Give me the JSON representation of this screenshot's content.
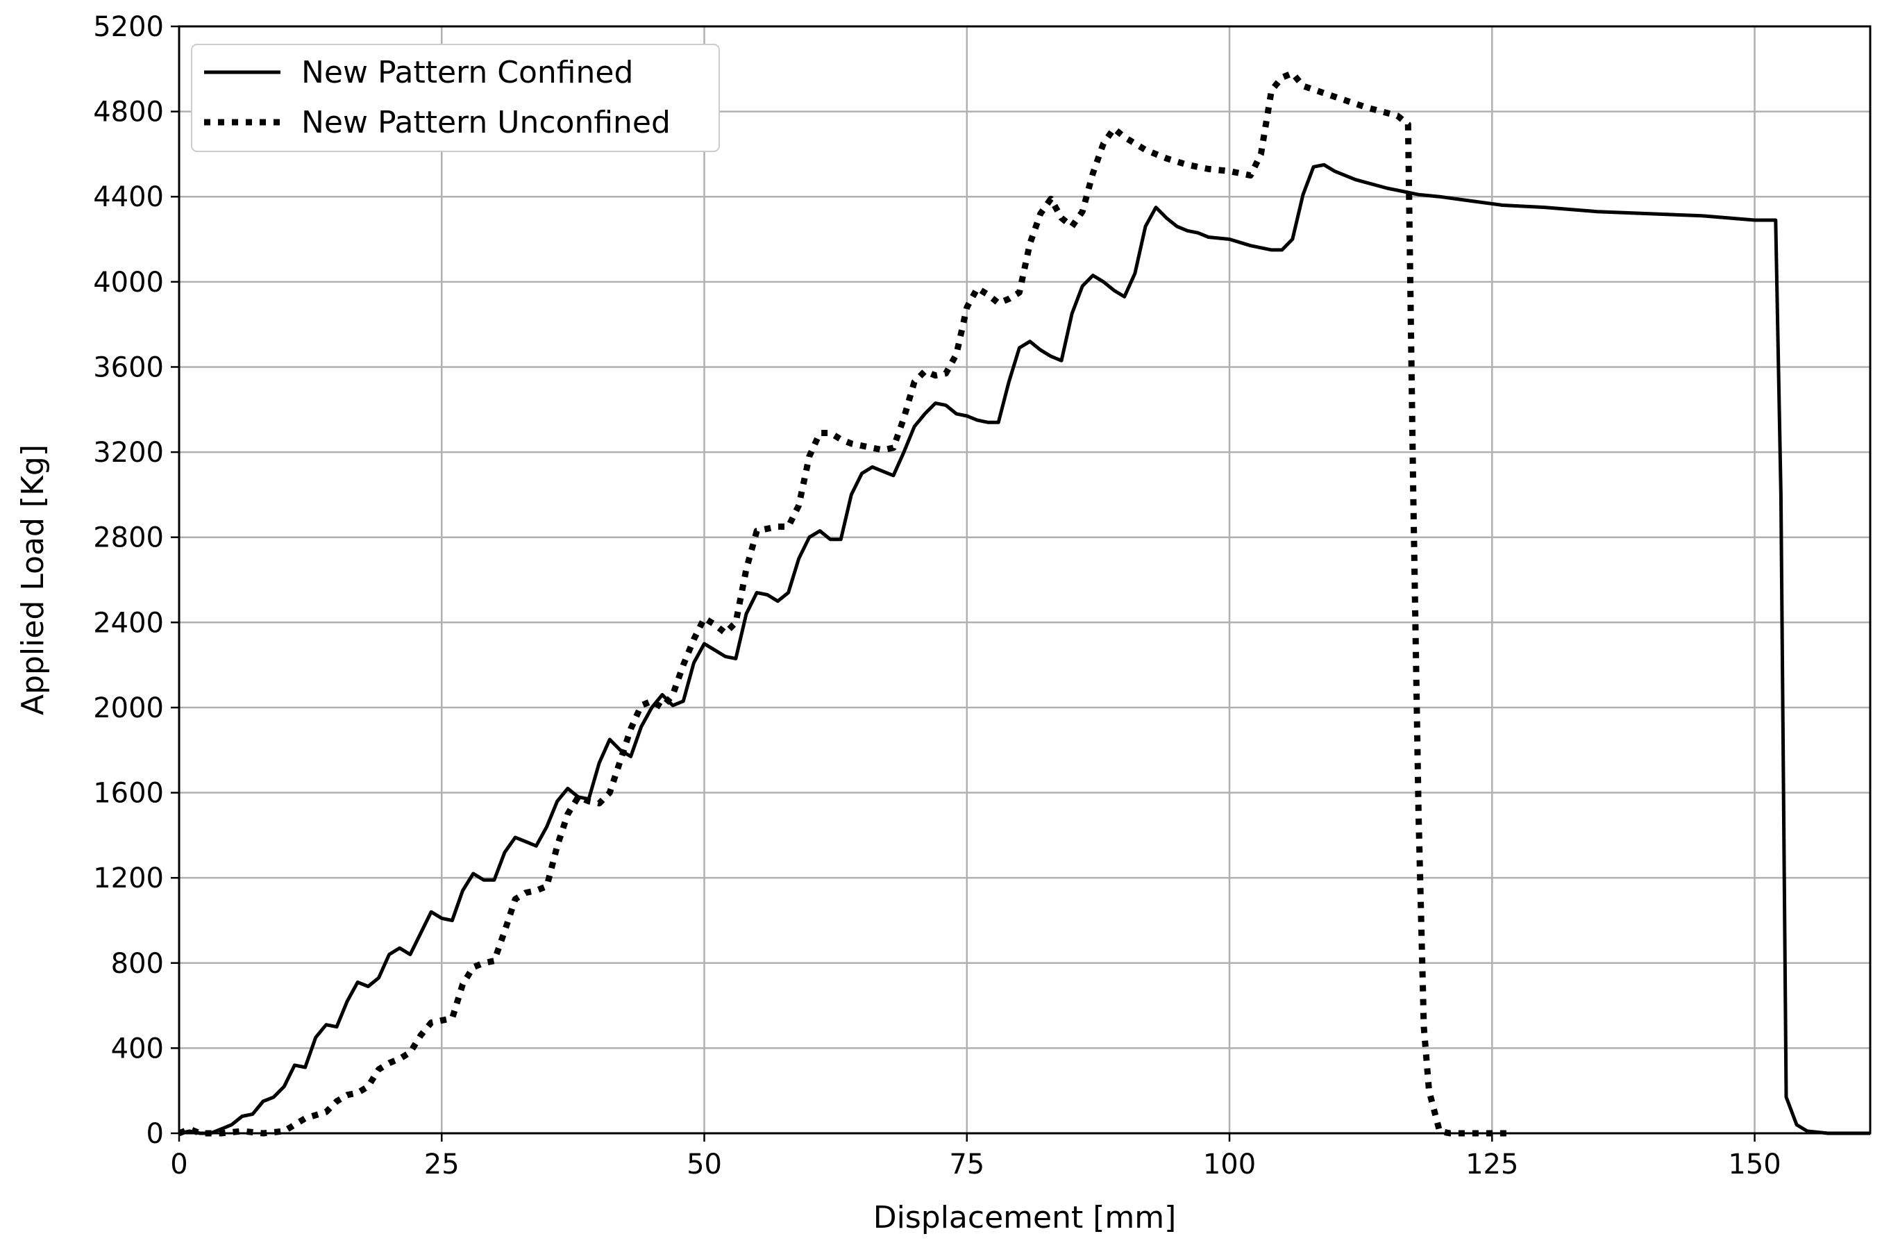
{
  "chart_data": {
    "type": "line",
    "xlabel": "Displacement [mm]",
    "ylabel": "Applied Load [Kg]",
    "xlim": [
      0,
      161
    ],
    "ylim": [
      0,
      5200
    ],
    "xticks": [
      0,
      25,
      50,
      75,
      100,
      125,
      150
    ],
    "yticks": [
      0,
      400,
      800,
      1200,
      1600,
      2000,
      2400,
      2800,
      3200,
      3600,
      4000,
      4400,
      4800,
      5200
    ],
    "grid": true,
    "legend_position": "top-left",
    "series": [
      {
        "name": "New Pattern Confined",
        "style": "solid",
        "color": "#000000",
        "points": [
          [
            0,
            0
          ],
          [
            1,
            10
          ],
          [
            2,
            0
          ],
          [
            3,
            0
          ],
          [
            4,
            20
          ],
          [
            5,
            40
          ],
          [
            6,
            80
          ],
          [
            7,
            90
          ],
          [
            8,
            150
          ],
          [
            9,
            170
          ],
          [
            10,
            220
          ],
          [
            11,
            320
          ],
          [
            12,
            310
          ],
          [
            13,
            450
          ],
          [
            14,
            510
          ],
          [
            15,
            500
          ],
          [
            16,
            620
          ],
          [
            17,
            710
          ],
          [
            18,
            690
          ],
          [
            19,
            730
          ],
          [
            20,
            840
          ],
          [
            21,
            870
          ],
          [
            22,
            840
          ],
          [
            23,
            940
          ],
          [
            24,
            1040
          ],
          [
            25,
            1010
          ],
          [
            26,
            1000
          ],
          [
            27,
            1140
          ],
          [
            28,
            1220
          ],
          [
            29,
            1190
          ],
          [
            30,
            1190
          ],
          [
            31,
            1320
          ],
          [
            32,
            1390
          ],
          [
            33,
            1370
          ],
          [
            34,
            1350
          ],
          [
            35,
            1440
          ],
          [
            36,
            1560
          ],
          [
            37,
            1620
          ],
          [
            38,
            1580
          ],
          [
            39,
            1570
          ],
          [
            40,
            1740
          ],
          [
            41,
            1850
          ],
          [
            42,
            1800
          ],
          [
            43,
            1770
          ],
          [
            44,
            1910
          ],
          [
            45,
            2000
          ],
          [
            46,
            2060
          ],
          [
            47,
            2010
          ],
          [
            48,
            2030
          ],
          [
            49,
            2210
          ],
          [
            50,
            2300
          ],
          [
            51,
            2270
          ],
          [
            52,
            2240
          ],
          [
            53,
            2230
          ],
          [
            54,
            2440
          ],
          [
            55,
            2540
          ],
          [
            56,
            2530
          ],
          [
            57,
            2500
          ],
          [
            58,
            2540
          ],
          [
            59,
            2700
          ],
          [
            60,
            2800
          ],
          [
            61,
            2830
          ],
          [
            62,
            2790
          ],
          [
            63,
            2790
          ],
          [
            64,
            3000
          ],
          [
            65,
            3100
          ],
          [
            66,
            3130
          ],
          [
            67,
            3110
          ],
          [
            68,
            3090
          ],
          [
            69,
            3200
          ],
          [
            70,
            3320
          ],
          [
            71,
            3380
          ],
          [
            72,
            3430
          ],
          [
            73,
            3420
          ],
          [
            74,
            3380
          ],
          [
            75,
            3370
          ],
          [
            76,
            3350
          ],
          [
            77,
            3340
          ],
          [
            78,
            3340
          ],
          [
            79,
            3530
          ],
          [
            80,
            3690
          ],
          [
            81,
            3720
          ],
          [
            82,
            3680
          ],
          [
            83,
            3650
          ],
          [
            84,
            3630
          ],
          [
            85,
            3850
          ],
          [
            86,
            3980
          ],
          [
            87,
            4030
          ],
          [
            88,
            4000
          ],
          [
            89,
            3960
          ],
          [
            90,
            3930
          ],
          [
            91,
            4040
          ],
          [
            92,
            4260
          ],
          [
            93,
            4350
          ],
          [
            94,
            4300
          ],
          [
            95,
            4260
          ],
          [
            96,
            4240
          ],
          [
            97,
            4230
          ],
          [
            98,
            4210
          ],
          [
            100,
            4200
          ],
          [
            102,
            4170
          ],
          [
            104,
            4150
          ],
          [
            105,
            4150
          ],
          [
            106,
            4200
          ],
          [
            107,
            4410
          ],
          [
            108,
            4540
          ],
          [
            109,
            4550
          ],
          [
            110,
            4520
          ],
          [
            112,
            4480
          ],
          [
            115,
            4440
          ],
          [
            118,
            4410
          ],
          [
            120,
            4400
          ],
          [
            123,
            4380
          ],
          [
            126,
            4360
          ],
          [
            130,
            4350
          ],
          [
            135,
            4330
          ],
          [
            140,
            4320
          ],
          [
            145,
            4310
          ],
          [
            150,
            4290
          ],
          [
            152,
            4290
          ],
          [
            152.5,
            3000
          ],
          [
            153,
            170
          ],
          [
            154,
            40
          ],
          [
            155,
            10
          ],
          [
            157,
            0
          ],
          [
            161,
            0
          ]
        ]
      },
      {
        "name": "New Pattern Unconfined",
        "style": "dotted",
        "color": "#000000",
        "points": [
          [
            0,
            0
          ],
          [
            1,
            20
          ],
          [
            2,
            0
          ],
          [
            4,
            0
          ],
          [
            6,
            10
          ],
          [
            8,
            0
          ],
          [
            10,
            10
          ],
          [
            12,
            70
          ],
          [
            14,
            100
          ],
          [
            15,
            150
          ],
          [
            16,
            180
          ],
          [
            17,
            190
          ],
          [
            18,
            220
          ],
          [
            19,
            300
          ],
          [
            20,
            330
          ],
          [
            21,
            350
          ],
          [
            22,
            380
          ],
          [
            23,
            460
          ],
          [
            24,
            520
          ],
          [
            25,
            530
          ],
          [
            26,
            540
          ],
          [
            27,
            700
          ],
          [
            28,
            780
          ],
          [
            29,
            800
          ],
          [
            30,
            810
          ],
          [
            31,
            950
          ],
          [
            32,
            1100
          ],
          [
            33,
            1130
          ],
          [
            34,
            1140
          ],
          [
            35,
            1160
          ],
          [
            36,
            1350
          ],
          [
            37,
            1500
          ],
          [
            38,
            1580
          ],
          [
            39,
            1560
          ],
          [
            40,
            1550
          ],
          [
            41,
            1600
          ],
          [
            42,
            1750
          ],
          [
            43,
            1900
          ],
          [
            44,
            2010
          ],
          [
            45,
            2030
          ],
          [
            46,
            2000
          ],
          [
            47,
            2060
          ],
          [
            48,
            2200
          ],
          [
            49,
            2320
          ],
          [
            50,
            2420
          ],
          [
            51,
            2390
          ],
          [
            52,
            2350
          ],
          [
            53,
            2400
          ],
          [
            54,
            2650
          ],
          [
            55,
            2830
          ],
          [
            56,
            2840
          ],
          [
            57,
            2850
          ],
          [
            58,
            2850
          ],
          [
            59,
            2950
          ],
          [
            60,
            3180
          ],
          [
            61,
            3290
          ],
          [
            62,
            3290
          ],
          [
            63,
            3260
          ],
          [
            64,
            3240
          ],
          [
            65,
            3230
          ],
          [
            67,
            3210
          ],
          [
            68,
            3220
          ],
          [
            69,
            3360
          ],
          [
            70,
            3530
          ],
          [
            71,
            3580
          ],
          [
            72,
            3560
          ],
          [
            73,
            3570
          ],
          [
            74,
            3660
          ],
          [
            75,
            3880
          ],
          [
            76,
            3970
          ],
          [
            77,
            3940
          ],
          [
            78,
            3900
          ],
          [
            79,
            3920
          ],
          [
            80,
            3950
          ],
          [
            81,
            4180
          ],
          [
            82,
            4320
          ],
          [
            83,
            4390
          ],
          [
            84,
            4300
          ],
          [
            85,
            4260
          ],
          [
            86,
            4330
          ],
          [
            87,
            4510
          ],
          [
            88,
            4650
          ],
          [
            89,
            4720
          ],
          [
            90,
            4680
          ],
          [
            92,
            4620
          ],
          [
            94,
            4580
          ],
          [
            96,
            4550
          ],
          [
            98,
            4530
          ],
          [
            100,
            4520
          ],
          [
            102,
            4500
          ],
          [
            103,
            4600
          ],
          [
            104,
            4900
          ],
          [
            105,
            4960
          ],
          [
            106,
            4980
          ],
          [
            107,
            4920
          ],
          [
            110,
            4870
          ],
          [
            113,
            4820
          ],
          [
            116,
            4780
          ],
          [
            117,
            4740
          ],
          [
            117.5,
            3000
          ],
          [
            118,
            1500
          ],
          [
            118.5,
            500
          ],
          [
            119,
            200
          ],
          [
            120,
            10
          ],
          [
            121,
            0
          ],
          [
            123,
            0
          ],
          [
            125,
            0
          ],
          [
            127,
            0
          ]
        ]
      }
    ]
  }
}
